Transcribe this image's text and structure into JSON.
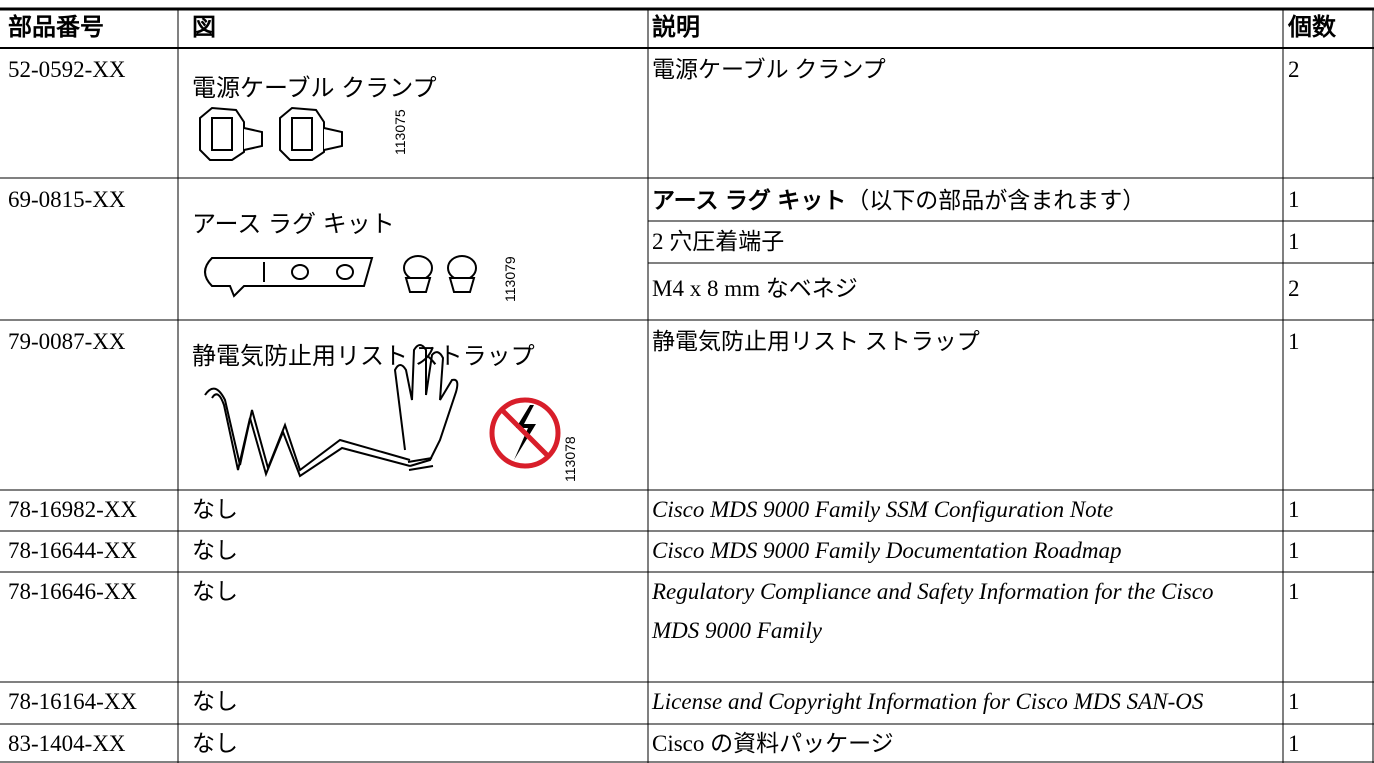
{
  "table": {
    "header": [
      "部品番号",
      "図",
      "説明",
      "個数"
    ],
    "rows": [
      {
        "part": "52-0592-XX",
        "figure": {
          "label": "電源ケーブル クランプ",
          "id": "113075"
        },
        "description": "電源ケーブル クランプ",
        "qty": 2
      },
      {
        "part": "69-0815-XX",
        "figure": {
          "label": "アース ラグ キット",
          "id": "113079"
        },
        "items": [
          {
            "description": "アース ラグ キット",
            "note": "（以下の部品が含まれます）",
            "qty": 1
          },
          {
            "description": "2 穴圧着端子",
            "qty": 1
          },
          {
            "description": "M4 x 8 mm なベネジ",
            "qty": 2
          }
        ]
      },
      {
        "part": "79-0087-XX",
        "figure": {
          "label": "静電気防止用リスト ストラップ",
          "id": "113078"
        },
        "description": "静電気防止用リスト ストラップ",
        "qty": 1
      },
      {
        "part": "78-16982-XX",
        "figure": "なし",
        "description": "Cisco MDS 9000 Family SSM Configuration Note",
        "qty": 1
      },
      {
        "part": "78-16644-XX",
        "figure": "なし",
        "description": "Cisco MDS 9000 Family Documentation Roadmap",
        "qty": 1
      },
      {
        "part": "78-16646-XX",
        "figure": "なし",
        "description": [
          "Regulatory Compliance and Safety Information for the Cisco",
          "MDS 9000 Family"
        ],
        "qty": 1
      },
      {
        "part": "78-16164-XX",
        "figure": "なし",
        "description": "License and Copyright Information for Cisco MDS SAN-OS",
        "qty": 1
      },
      {
        "part": "83-1404-XX",
        "figure": "なし",
        "description": "Cisco の資料パッケージ",
        "qty": 1
      }
    ]
  }
}
